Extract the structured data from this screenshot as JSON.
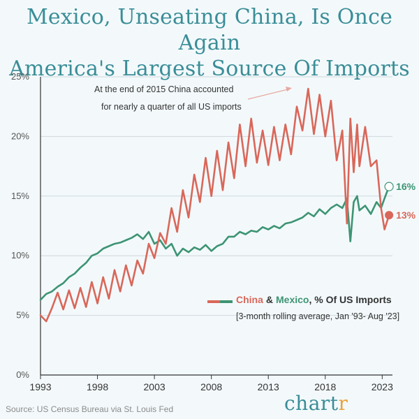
{
  "title_line1": "Mexico, Unseating China, Is Once Again",
  "title_line2": "America's Largest Source Of Imports",
  "annotation_line1": "At the end of 2015 China accounted",
  "annotation_line2": "for nearly a quarter of all US imports",
  "legend": {
    "china": "China",
    "amp": "&",
    "mexico": "Mexico",
    "rest": ", % Of US Imports",
    "subtitle": "[3-month rolling average, Jan '93- Aug '23]"
  },
  "end_labels": {
    "mexico": "16%",
    "china": "13%"
  },
  "source": "Source: US Census Bureau via St. Louis Fed",
  "brand": {
    "main": "chart",
    "accent": "r"
  },
  "colors": {
    "china": "#d9675a",
    "mexico": "#3d9473",
    "title": "#3a8d97",
    "background": "#f3f9fb"
  },
  "chart_data": {
    "type": "line",
    "xlabel": "",
    "ylabel": "",
    "x_ticks": [
      "1993",
      "1998",
      "2003",
      "2008",
      "2013",
      "2018",
      "2023"
    ],
    "y_ticks": [
      "0%",
      "5%",
      "10%",
      "15%",
      "20%",
      "25%"
    ],
    "ylim": [
      0,
      25
    ],
    "xlim": [
      1993,
      2023.9
    ],
    "grid": true,
    "legend_position": "lower-right",
    "series": [
      {
        "name": "China",
        "x": [
          1993,
          1993.5,
          1994,
          1994.5,
          1995,
          1995.5,
          1996,
          1996.5,
          1997,
          1997.5,
          1998,
          1998.5,
          1999,
          1999.5,
          2000,
          2000.5,
          2001,
          2001.5,
          2002,
          2002.5,
          2003,
          2003.5,
          2004,
          2004.5,
          2005,
          2005.5,
          2006,
          2006.5,
          2007,
          2007.5,
          2008,
          2008.5,
          2009,
          2009.5,
          2010,
          2010.5,
          2011,
          2011.5,
          2012,
          2012.5,
          2013,
          2013.5,
          2014,
          2014.5,
          2015,
          2015.5,
          2016,
          2016.5,
          2017,
          2017.5,
          2018,
          2018.5,
          2019,
          2019.5,
          2019.9,
          2020.2,
          2020.5,
          2020.8,
          2021,
          2021.5,
          2022,
          2022.5,
          2022.9,
          2023.2,
          2023.6
        ],
        "values": [
          5.0,
          4.5,
          5.6,
          6.9,
          5.5,
          7.1,
          5.6,
          7.3,
          5.7,
          7.8,
          6.0,
          8.2,
          6.4,
          8.8,
          7.0,
          9.2,
          7.5,
          9.6,
          8.5,
          11.0,
          9.8,
          11.9,
          11.0,
          14.0,
          12.0,
          15.5,
          13.2,
          16.8,
          14.5,
          18.2,
          15.0,
          18.8,
          15.5,
          19.5,
          16.5,
          21.0,
          17.5,
          21.5,
          17.8,
          20.5,
          17.6,
          20.8,
          18.0,
          21.0,
          18.5,
          22.5,
          20.5,
          24.0,
          20.2,
          23.5,
          20.0,
          23.0,
          18.0,
          20.5,
          12.7,
          21.5,
          17.0,
          21.0,
          17.5,
          20.8,
          17.5,
          18.0,
          14.0,
          12.2,
          13.4
        ]
      },
      {
        "name": "Mexico",
        "x": [
          1993,
          1993.5,
          1994,
          1994.5,
          1995,
          1995.5,
          1996,
          1996.5,
          1997,
          1997.5,
          1998,
          1998.5,
          1999,
          1999.5,
          2000,
          2000.5,
          2001,
          2001.5,
          2002,
          2002.5,
          2003,
          2003.5,
          2004,
          2004.5,
          2005,
          2005.5,
          2006,
          2006.5,
          2007,
          2007.5,
          2008,
          2008.5,
          2009,
          2009.5,
          2010,
          2010.5,
          2011,
          2011.5,
          2012,
          2012.5,
          2013,
          2013.5,
          2014,
          2014.5,
          2015,
          2015.5,
          2016,
          2016.5,
          2017,
          2017.5,
          2018,
          2018.5,
          2019,
          2019.5,
          2019.9,
          2020.2,
          2020.5,
          2020.8,
          2021,
          2021.5,
          2022,
          2022.5,
          2022.9,
          2023.2,
          2023.6
        ],
        "values": [
          6.3,
          6.8,
          7.0,
          7.4,
          7.7,
          8.2,
          8.5,
          9.0,
          9.4,
          10.0,
          10.2,
          10.6,
          10.8,
          11.0,
          11.1,
          11.3,
          11.5,
          11.8,
          11.4,
          12.0,
          11.0,
          11.3,
          10.6,
          11.0,
          10.0,
          10.6,
          10.3,
          10.7,
          10.5,
          10.9,
          10.4,
          10.8,
          11.0,
          11.6,
          11.6,
          12.0,
          11.8,
          12.1,
          12.0,
          12.4,
          12.2,
          12.5,
          12.3,
          12.7,
          12.8,
          13.0,
          13.2,
          13.6,
          13.3,
          13.9,
          13.5,
          14.0,
          14.3,
          14.0,
          14.8,
          11.2,
          14.5,
          15.0,
          13.8,
          14.2,
          13.5,
          14.5,
          14.0,
          14.8,
          15.8
        ]
      }
    ]
  }
}
